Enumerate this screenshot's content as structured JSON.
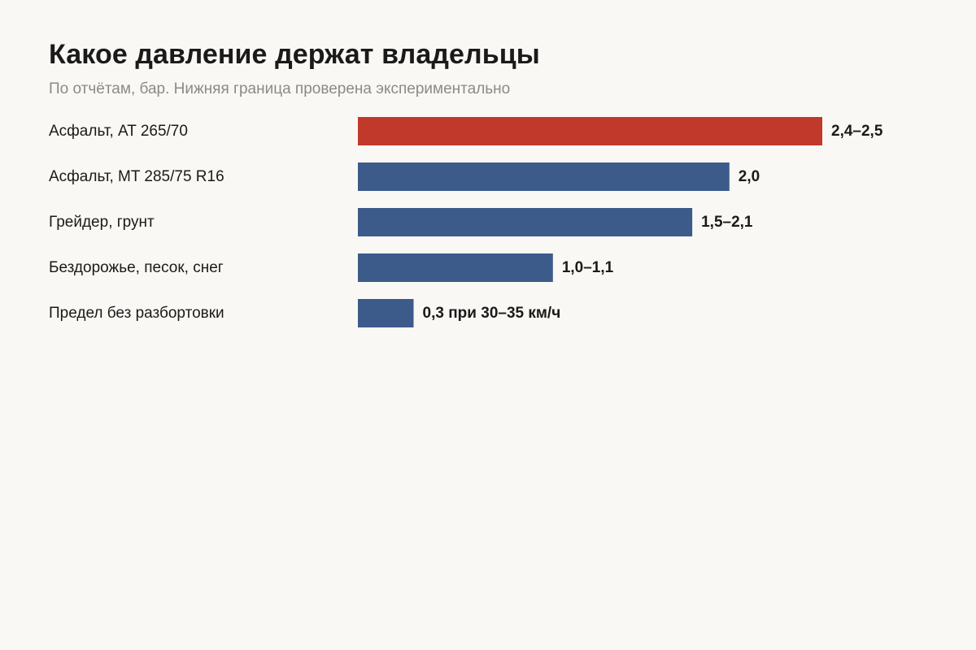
{
  "chart_data": {
    "type": "bar",
    "orientation": "horizontal",
    "title": "Какое давление держат владельцы",
    "subtitle": "По отчётам, бар. Нижняя граница проверена экспериментально",
    "xlabel": "",
    "ylabel": "",
    "xlim": [
      0,
      2.5
    ],
    "grid": false,
    "legend": "none",
    "categories": [
      "Асфальт, AT 265/70",
      "Асфальт, MT 285/75 R16",
      "Грейдер, грунт",
      "Бездорожье, песок, снег",
      "Предел без разбортовки"
    ],
    "values": [
      2.5,
      2.0,
      1.8,
      1.05,
      0.3
    ],
    "value_labels": [
      "2,4–2,5",
      "2,0",
      "1,5–2,1",
      "1,0–1,1",
      "0,3 при 30–35 км/ч"
    ],
    "colors": [
      "#c0392b",
      "#3c5b8a",
      "#3c5b8a",
      "#3c5b8a",
      "#3c5b8a"
    ]
  }
}
